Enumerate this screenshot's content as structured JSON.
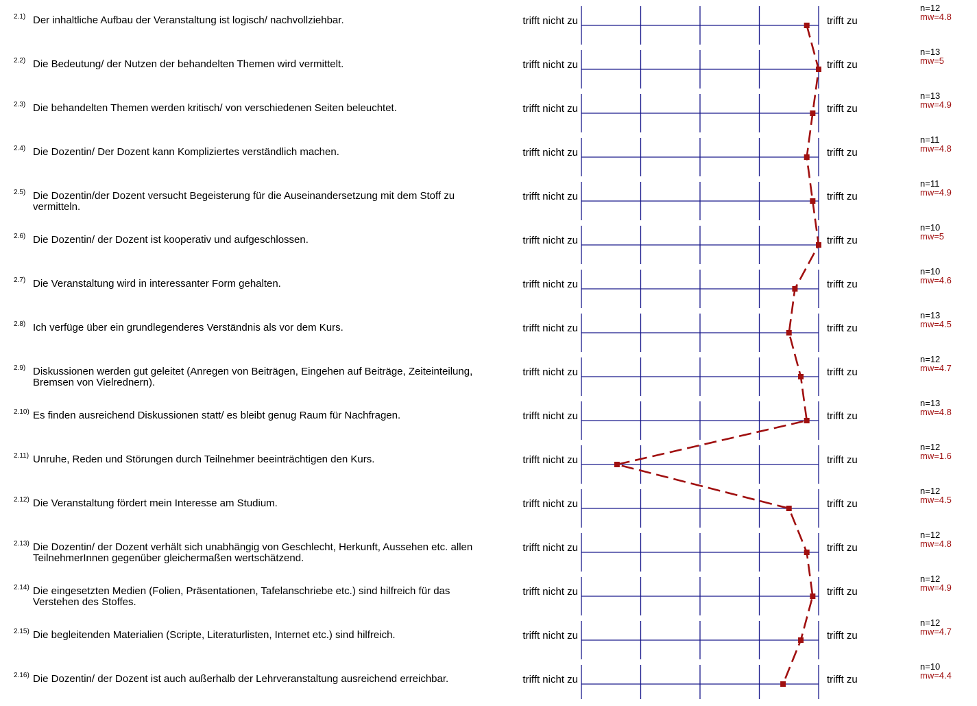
{
  "chart_data": {
    "type": "line",
    "scale": {
      "min": 1,
      "max": 5,
      "ticks": [
        1,
        2,
        3,
        4,
        5
      ]
    },
    "left_label": "trifft nicht zu",
    "right_label": "trifft zu",
    "line_color": "#a01010",
    "axis_color": "#1a1a8c",
    "items": [
      {
        "num": "2.1)",
        "text": "Der inhaltliche Aufbau der Veranstaltung ist logisch/ nachvollziehbar.",
        "n": "n=12",
        "mw_label": "mw=4.8",
        "mw": 4.8
      },
      {
        "num": "2.2)",
        "text": "Die Bedeutung/ der Nutzen der behandelten Themen wird vermittelt.",
        "n": "n=13",
        "mw_label": "mw=5",
        "mw": 5.0
      },
      {
        "num": "2.3)",
        "text": "Die behandelten Themen werden kritisch/ von verschiedenen Seiten beleuchtet.",
        "n": "n=13",
        "mw_label": "mw=4.9",
        "mw": 4.9
      },
      {
        "num": "2.4)",
        "text": "Die Dozentin/ Der Dozent kann Kompliziertes verständlich machen.",
        "n": "n=11",
        "mw_label": "mw=4.8",
        "mw": 4.8
      },
      {
        "num": "2.5)",
        "text": "Die Dozentin/der Dozent versucht Begeisterung für die Auseinandersetzung mit dem Stoff zu vermitteln.",
        "n": "n=11",
        "mw_label": "mw=4.9",
        "mw": 4.9
      },
      {
        "num": "2.6)",
        "text": "Die Dozentin/ der Dozent ist kooperativ und aufgeschlossen.",
        "n": "n=10",
        "mw_label": "mw=5",
        "mw": 5.0
      },
      {
        "num": "2.7)",
        "text": "Die Veranstaltung wird in interessanter Form gehalten.",
        "n": "n=10",
        "mw_label": "mw=4.6",
        "mw": 4.6
      },
      {
        "num": "2.8)",
        "text": "Ich verfüge über ein grundlegenderes Verständnis als vor dem Kurs.",
        "n": "n=13",
        "mw_label": "mw=4.5",
        "mw": 4.5
      },
      {
        "num": "2.9)",
        "text": "Diskussionen werden gut geleitet (Anregen von Beiträgen, Eingehen auf Beiträge, Zeiteinteilung, Bremsen von Vielrednern).",
        "n": "n=12",
        "mw_label": "mw=4.7",
        "mw": 4.7
      },
      {
        "num": "2.10)",
        "text": "Es finden ausreichend Diskussionen statt/ es bleibt genug Raum für Nachfragen.",
        "n": "n=13",
        "mw_label": "mw=4.8",
        "mw": 4.8
      },
      {
        "num": "2.11)",
        "text": "Unruhe, Reden und Störungen durch Teilnehmer beeinträchtigen den Kurs.",
        "n": "n=12",
        "mw_label": "mw=1.6",
        "mw": 1.6
      },
      {
        "num": "2.12)",
        "text": "Die Veranstaltung fördert mein Interesse am Studium.",
        "n": "n=12",
        "mw_label": "mw=4.5",
        "mw": 4.5
      },
      {
        "num": "2.13)",
        "text": "Die Dozentin/ der Dozent verhält sich unabhängig von Geschlecht, Herkunft, Aussehen etc. allen TeilnehmerInnen gegenüber gleichermaßen wertschätzend.",
        "n": "n=12",
        "mw_label": "mw=4.8",
        "mw": 4.8
      },
      {
        "num": "2.14)",
        "text": "Die eingesetzten Medien (Folien, Präsentationen, Tafelanschriebe etc.) sind hilfreich für das Verstehen des Stoffes.",
        "n": "n=12",
        "mw_label": "mw=4.9",
        "mw": 4.9
      },
      {
        "num": "2.15)",
        "text": "Die begleitenden Materialien (Scripte, Literaturlisten, Internet etc.) sind hilfreich.",
        "n": "n=12",
        "mw_label": "mw=4.7",
        "mw": 4.7
      },
      {
        "num": "2.16)",
        "text": "Die Dozentin/ der Dozent ist auch außerhalb der Lehrveranstaltung ausreichend erreichbar.",
        "n": "n=10",
        "mw_label": "mw=4.4",
        "mw": 4.4
      }
    ]
  }
}
